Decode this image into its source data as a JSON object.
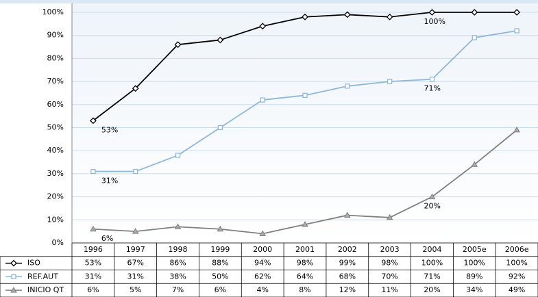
{
  "chart_data": {
    "type": "line",
    "categories": [
      "1996",
      "1997",
      "1998",
      "1999",
      "2000",
      "2001",
      "2002",
      "2003",
      "2004",
      "2005e",
      "2006e"
    ],
    "series": [
      {
        "name": "ISO",
        "color": "#000000",
        "marker": "diamond",
        "values": [
          53,
          67,
          86,
          88,
          94,
          98,
          99,
          98,
          100,
          100,
          100
        ],
        "value_labels": [
          "53%",
          "67%",
          "86%",
          "88%",
          "94%",
          "98%",
          "99%",
          "98%",
          "100%",
          "100%",
          "100%"
        ]
      },
      {
        "name": "REF.AUT",
        "color": "#8fb7da",
        "marker": "square",
        "values": [
          31,
          31,
          38,
          50,
          62,
          64,
          68,
          70,
          71,
          89,
          92
        ],
        "value_labels": [
          "31%",
          "31%",
          "38%",
          "50%",
          "62%",
          "64%",
          "68%",
          "70%",
          "71%",
          "89%",
          "92%"
        ]
      },
      {
        "name": "INICIO QT",
        "color": "#808080",
        "marker": "triangle",
        "values": [
          6,
          5,
          7,
          6,
          4,
          8,
          12,
          11,
          20,
          34,
          49
        ],
        "value_labels": [
          "6%",
          "5%",
          "7%",
          "6%",
          "4%",
          "8%",
          "12%",
          "11%",
          "20%",
          "34%",
          "49%"
        ]
      }
    ],
    "ylim": [
      0,
      100
    ],
    "yticks": [
      {
        "value": 0,
        "label": "0%"
      },
      {
        "value": 10,
        "label": "10%"
      },
      {
        "value": 20,
        "label": "20%"
      },
      {
        "value": 30,
        "label": "30%"
      },
      {
        "value": 40,
        "label": "40%"
      },
      {
        "value": 50,
        "label": "50%"
      },
      {
        "value": 60,
        "label": "60%"
      },
      {
        "value": 70,
        "label": "70%"
      },
      {
        "value": 80,
        "label": "80%"
      },
      {
        "value": 90,
        "label": "90%"
      },
      {
        "value": 100,
        "label": "100%"
      }
    ],
    "grid": true
  }
}
